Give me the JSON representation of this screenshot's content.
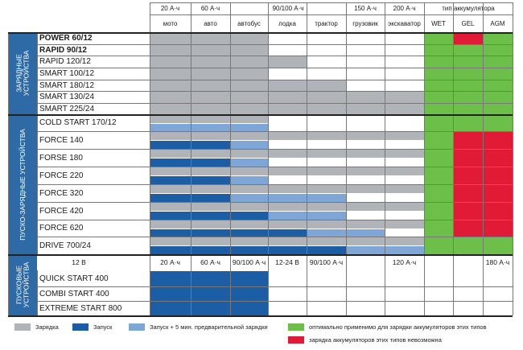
{
  "colors": {
    "charge": "#b0b3b8",
    "start": "#1c5ea5",
    "start_preheat": "#7ea6d6",
    "optimal": "#6cc04a",
    "not_possible": "#e11b36",
    "section_bg": "#2e6aa6"
  },
  "capacity_headers": [
    {
      "label": "20 А·ч",
      "span": [
        0,
        0
      ]
    },
    {
      "label": "60 А·ч",
      "span": [
        1,
        1
      ]
    },
    {
      "label": "90/100 А·ч",
      "span": [
        2,
        4
      ]
    },
    {
      "label": "150 А·ч",
      "span": [
        5,
        5
      ]
    },
    {
      "label": "200 А·ч",
      "span": [
        6,
        6
      ]
    }
  ],
  "battery_type_header": "тип аккумулятора",
  "vehicle_headers": [
    "мото",
    "авто",
    "автобус",
    "лодка",
    "трактор",
    "грузовик",
    "экскаватор"
  ],
  "battery_types": [
    "WET",
    "GEL",
    "AGM"
  ],
  "sections": [
    {
      "label": "ЗАРЯДНЫЕ\nУСТРОЙСТВА"
    },
    {
      "label": "ПУСКО-ЗАРЯДНЫЕ УСТРОЙСТВА"
    },
    {
      "label": "ПУСКОВЫЕ\nУСТРОЙСТВА"
    }
  ],
  "models": [
    {
      "name": "POWER 60/12",
      "bold": true
    },
    {
      "name": "RAPID 90/12",
      "bold": true
    },
    {
      "name": "RAPID 120/12",
      "bold": false
    },
    {
      "name": "SMART 100/12",
      "bold": false
    },
    {
      "name": "SMART 180/12",
      "bold": false
    },
    {
      "name": "SMART 130/24",
      "bold": false
    },
    {
      "name": "SMART 225/24",
      "bold": false
    },
    {
      "name": "COLD START 170/12",
      "bold": false
    },
    {
      "name": "FORCE 140",
      "bold": false
    },
    {
      "name": "FORSE 180",
      "bold": false
    },
    {
      "name": "FORCE 220",
      "bold": false
    },
    {
      "name": "FORCE 320",
      "bold": false
    },
    {
      "name": "FORCE 420",
      "bold": false
    },
    {
      "name": "FORCE 620",
      "bold": false
    },
    {
      "name": "DRIVE 700/24",
      "bold": false
    },
    {
      "name": "QUICK START 400",
      "bold": false
    },
    {
      "name": "COMBI START 400",
      "bold": false
    },
    {
      "name": "EXTREME START 800",
      "bold": false
    }
  ],
  "compat_matrix": [
    {
      "charge": [
        0,
        2
      ],
      "start": null,
      "pre": null,
      "battery": [
        "optimal",
        "not_possible",
        "optimal"
      ]
    },
    {
      "charge": [
        0,
        2
      ],
      "start": null,
      "pre": null,
      "battery": [
        "optimal",
        "optimal",
        "optimal"
      ]
    },
    {
      "charge": [
        0,
        3
      ],
      "start": null,
      "pre": null,
      "battery": [
        "optimal",
        "optimal",
        "optimal"
      ]
    },
    {
      "charge": [
        0,
        2
      ],
      "start": null,
      "pre": null,
      "battery": [
        "optimal",
        "optimal",
        "optimal"
      ]
    },
    {
      "charge": [
        0,
        4
      ],
      "start": null,
      "pre": null,
      "battery": [
        "optimal",
        "optimal",
        "optimal"
      ]
    },
    {
      "charge": [
        0,
        6
      ],
      "start": null,
      "pre": null,
      "battery": [
        "optimal",
        "optimal",
        "optimal"
      ]
    },
    {
      "charge": [
        0,
        6
      ],
      "start": null,
      "pre": null,
      "battery": [
        "optimal",
        "optimal",
        "optimal"
      ]
    },
    {
      "charge": [
        0,
        2
      ],
      "start": null,
      "pre": [
        0,
        2
      ],
      "battery": [
        "optimal",
        "optimal",
        "optimal"
      ]
    },
    {
      "charge": [
        0,
        6
      ],
      "start": [
        0,
        1
      ],
      "pre": [
        2,
        2
      ],
      "battery": [
        "optimal",
        "not_possible",
        "not_possible"
      ]
    },
    {
      "charge": [
        0,
        6
      ],
      "start": [
        0,
        1
      ],
      "pre": [
        2,
        2
      ],
      "battery": [
        "optimal",
        "not_possible",
        "not_possible"
      ]
    },
    {
      "charge": [
        0,
        6
      ],
      "start": [
        0,
        1
      ],
      "pre": [
        2,
        2
      ],
      "battery": [
        "optimal",
        "not_possible",
        "not_possible"
      ]
    },
    {
      "charge": [
        0,
        6
      ],
      "start": [
        0,
        1
      ],
      "pre": [
        2,
        4
      ],
      "battery": [
        "optimal",
        "not_possible",
        "not_possible"
      ]
    },
    {
      "charge": [
        0,
        6
      ],
      "start": [
        0,
        2
      ],
      "pre": [
        3,
        4
      ],
      "battery": [
        "optimal",
        "not_possible",
        "not_possible"
      ]
    },
    {
      "charge": [
        0,
        6
      ],
      "start": [
        0,
        3
      ],
      "pre": [
        4,
        5
      ],
      "battery": [
        "optimal",
        "not_possible",
        "not_possible"
      ]
    },
    {
      "charge": [
        0,
        6
      ],
      "start": [
        0,
        4
      ],
      "pre": [
        5,
        6
      ],
      "battery": [
        "optimal",
        "optimal",
        "optimal"
      ]
    },
    {
      "start_block": [
        0,
        2
      ]
    },
    {
      "start_block": [
        0,
        2
      ]
    },
    {
      "start_block": [
        0,
        2
      ]
    }
  ],
  "voltage_row": {
    "left": "12 В",
    "cells": [
      "20 А·ч",
      "60 А·ч",
      "90/100 А·ч",
      "12-24 В",
      "90/100 А·ч",
      "",
      "120 А·ч"
    ],
    "battery_cells": [
      "",
      "",
      "180 А·ч"
    ]
  },
  "legend": [
    {
      "key": "charge",
      "label": "Зарядка"
    },
    {
      "key": "start",
      "label": "Запуск"
    },
    {
      "key": "start_preheat",
      "label": "Запуск + 5 мин. предварительной зарядки"
    },
    {
      "key": "optimal",
      "label": "оптимально применимо для зарядки аккумуляторов этих типов"
    },
    {
      "key": "not_possible",
      "label": "зарядка аккумуляторов этих типов невозможна"
    }
  ]
}
